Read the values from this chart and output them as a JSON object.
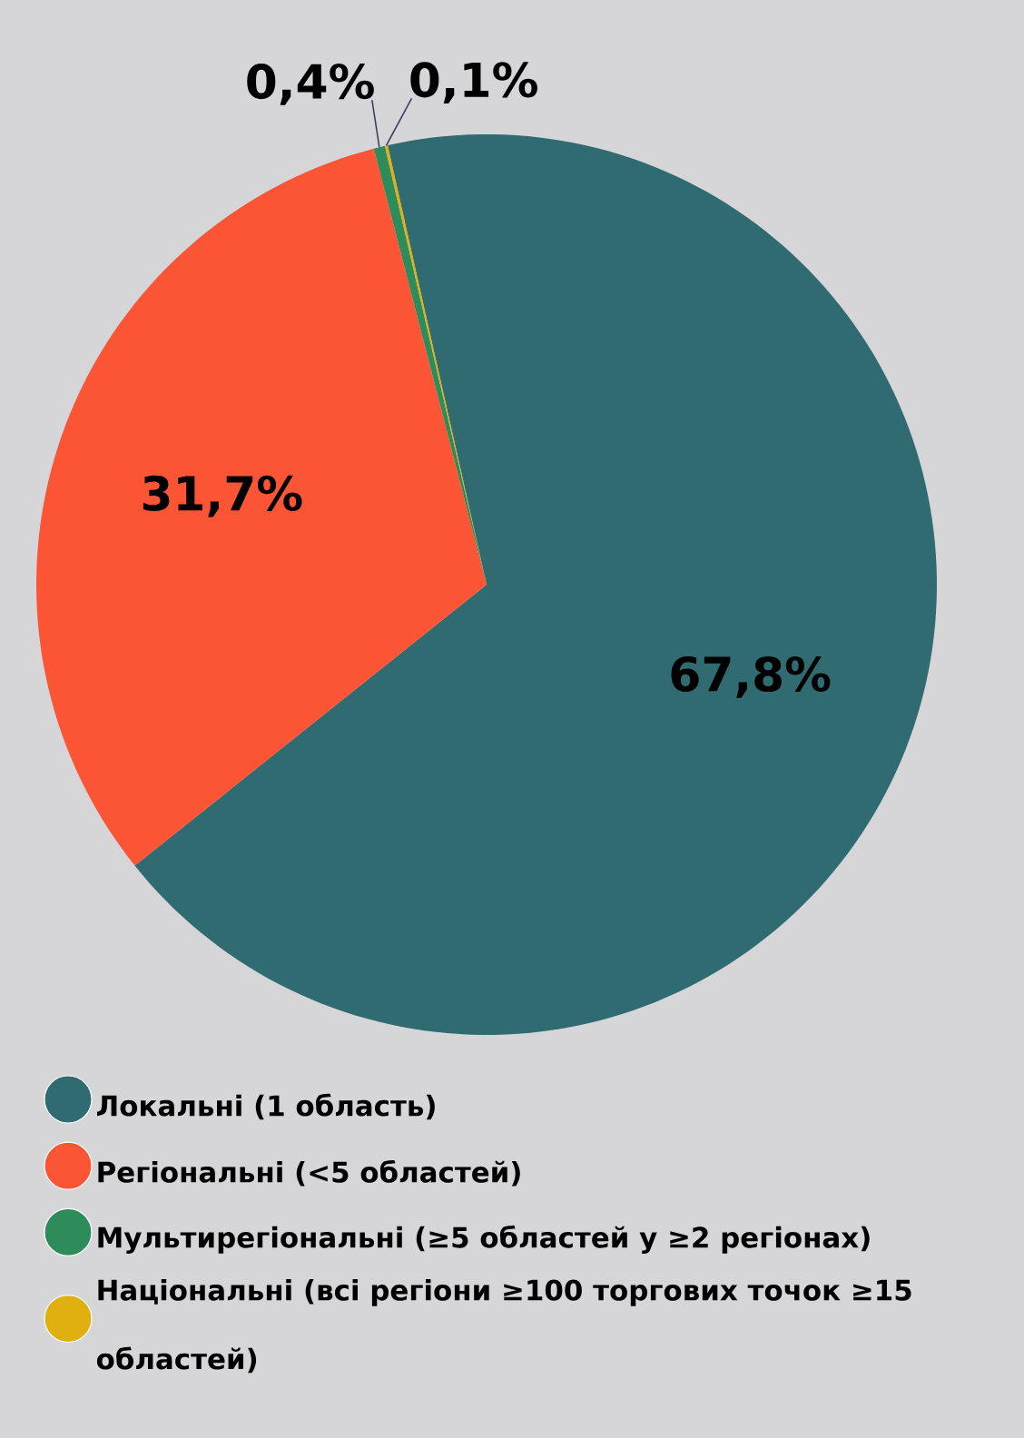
{
  "chart_data": {
    "type": "pie",
    "categories": [
      "Локальні (1 область)",
      "Регіональні (<5 областей)",
      "Мультирегіональні (≥5 областей у ≥2 регіонах)",
      "Національні (всі регіони ≥100 торгових точок ≥15 областей)"
    ],
    "values": [
      67.8,
      31.7,
      0.4,
      0.1
    ],
    "value_labels": [
      "67,8%",
      "31,7%",
      "0,4%",
      "0,1%"
    ],
    "colors": [
      "#2f6b70",
      "#fc5536",
      "#2e8b5a",
      "#e0b010"
    ],
    "legend": "bottom"
  }
}
